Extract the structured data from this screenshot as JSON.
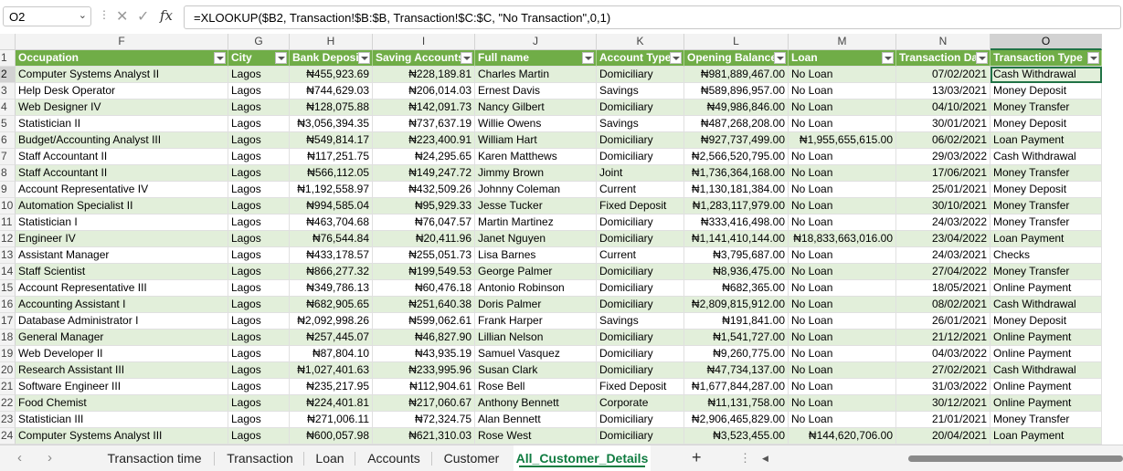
{
  "formula_bar": {
    "name_box": "O2",
    "formula": "=XLOOKUP($B2, Transaction!$B:$B, Transaction!$C:$C, \"No Transaction\",0,1)"
  },
  "columns": [
    {
      "letter": "F",
      "header": "Occupation"
    },
    {
      "letter": "G",
      "header": "City"
    },
    {
      "letter": "H",
      "header": "Bank Deposit"
    },
    {
      "letter": "I",
      "header": "Saving Accounts"
    },
    {
      "letter": "J",
      "header": "Full name"
    },
    {
      "letter": "K",
      "header": "Account Type"
    },
    {
      "letter": "L",
      "header": "Opening Balance"
    },
    {
      "letter": "M",
      "header": "Loan"
    },
    {
      "letter": "N",
      "header": "Transaction Date"
    },
    {
      "letter": "O",
      "header": "Transaction Type"
    }
  ],
  "header_row_number": "1",
  "rows": [
    {
      "num": "2",
      "cells": [
        "Computer Systems Analyst II",
        "Lagos",
        "₦455,923.69",
        "₦228,189.81",
        "Charles Martin",
        "Domiciliary",
        "₦981,889,467.00",
        "No Loan",
        "07/02/2021",
        "Cash Withdrawal"
      ]
    },
    {
      "num": "3",
      "cells": [
        "Help Desk Operator",
        "Lagos",
        "₦744,629.03",
        "₦206,014.03",
        "Ernest Davis",
        "Savings",
        "₦589,896,957.00",
        "No Loan",
        "13/03/2021",
        "Money Deposit"
      ]
    },
    {
      "num": "4",
      "cells": [
        "Web Designer IV",
        "Lagos",
        "₦128,075.88",
        "₦142,091.73",
        "Nancy Gilbert",
        "Domiciliary",
        "₦49,986,846.00",
        "No Loan",
        "04/10/2021",
        "Money Transfer"
      ]
    },
    {
      "num": "5",
      "cells": [
        "Statistician II",
        "Lagos",
        "₦3,056,394.35",
        "₦737,637.19",
        "Willie Owens",
        "Savings",
        "₦487,268,208.00",
        "No Loan",
        "30/01/2021",
        "Money Deposit"
      ]
    },
    {
      "num": "6",
      "cells": [
        "Budget/Accounting Analyst III",
        "Lagos",
        "₦549,814.17",
        "₦223,400.91",
        "William Hart",
        "Domiciliary",
        "₦927,737,499.00",
        "₦1,955,655,615.00",
        "06/02/2021",
        "Loan Payment"
      ]
    },
    {
      "num": "7",
      "cells": [
        "Staff Accountant II",
        "Lagos",
        "₦117,251.75",
        "₦24,295.65",
        "Karen Matthews",
        "Domiciliary",
        "₦2,566,520,795.00",
        "No Loan",
        "29/03/2022",
        "Cash Withdrawal"
      ]
    },
    {
      "num": "8",
      "cells": [
        "Staff Accountant II",
        "Lagos",
        "₦566,112.05",
        "₦149,247.72",
        "Jimmy Brown",
        "Joint",
        "₦1,736,364,168.00",
        "No Loan",
        "17/06/2021",
        "Money Transfer"
      ]
    },
    {
      "num": "9",
      "cells": [
        "Account Representative IV",
        "Lagos",
        "₦1,192,558.97",
        "₦432,509.26",
        "Johnny Coleman",
        "Current",
        "₦1,130,181,384.00",
        "No Loan",
        "25/01/2021",
        "Money Deposit"
      ]
    },
    {
      "num": "10",
      "cells": [
        "Automation Specialist II",
        "Lagos",
        "₦994,585.04",
        "₦95,929.33",
        "Jesse Tucker",
        "Fixed Deposit",
        "₦1,283,117,979.00",
        "No Loan",
        "30/10/2021",
        "Money Transfer"
      ]
    },
    {
      "num": "11",
      "cells": [
        "Statistician I",
        "Lagos",
        "₦463,704.68",
        "₦76,047.57",
        "Martin Martinez",
        "Domiciliary",
        "₦333,416,498.00",
        "No Loan",
        "24/03/2022",
        "Money Transfer"
      ]
    },
    {
      "num": "12",
      "cells": [
        "Engineer IV",
        "Lagos",
        "₦76,544.84",
        "₦20,411.96",
        "Janet Nguyen",
        "Domiciliary",
        "₦1,141,410,144.00",
        "₦18,833,663,016.00",
        "23/04/2022",
        "Loan Payment"
      ]
    },
    {
      "num": "13",
      "cells": [
        "Assistant Manager",
        "Lagos",
        "₦433,178.57",
        "₦255,051.73",
        "Lisa Barnes",
        "Current",
        "₦3,795,687.00",
        "No Loan",
        "24/03/2021",
        "Checks"
      ]
    },
    {
      "num": "14",
      "cells": [
        "Staff Scientist",
        "Lagos",
        "₦866,277.32",
        "₦199,549.53",
        "George Palmer",
        "Domiciliary",
        "₦8,936,475.00",
        "No Loan",
        "27/04/2022",
        "Money Transfer"
      ]
    },
    {
      "num": "15",
      "cells": [
        "Account Representative III",
        "Lagos",
        "₦349,786.13",
        "₦60,476.18",
        "Antonio Robinson",
        "Domiciliary",
        "₦682,365.00",
        "No Loan",
        "18/05/2021",
        "Online Payment"
      ]
    },
    {
      "num": "16",
      "cells": [
        "Accounting Assistant I",
        "Lagos",
        "₦682,905.65",
        "₦251,640.38",
        "Doris Palmer",
        "Domiciliary",
        "₦2,809,815,912.00",
        "No Loan",
        "08/02/2021",
        "Cash Withdrawal"
      ]
    },
    {
      "num": "17",
      "cells": [
        "Database Administrator I",
        "Lagos",
        "₦2,092,998.26",
        "₦599,062.61",
        "Frank Harper",
        "Savings",
        "₦191,841.00",
        "No Loan",
        "26/01/2021",
        "Money Deposit"
      ]
    },
    {
      "num": "18",
      "cells": [
        "General Manager",
        "Lagos",
        "₦257,445.07",
        "₦46,827.90",
        "Lillian Nelson",
        "Domiciliary",
        "₦1,541,727.00",
        "No Loan",
        "21/12/2021",
        "Online Payment"
      ]
    },
    {
      "num": "19",
      "cells": [
        "Web Developer II",
        "Lagos",
        "₦87,804.10",
        "₦43,935.19",
        "Samuel Vasquez",
        "Domiciliary",
        "₦9,260,775.00",
        "No Loan",
        "04/03/2022",
        "Online Payment"
      ]
    },
    {
      "num": "20",
      "cells": [
        "Research Assistant III",
        "Lagos",
        "₦1,027,401.63",
        "₦233,995.96",
        "Susan Clark",
        "Domiciliary",
        "₦47,734,137.00",
        "No Loan",
        "27/02/2021",
        "Cash Withdrawal"
      ]
    },
    {
      "num": "21",
      "cells": [
        "Software Engineer III",
        "Lagos",
        "₦235,217.95",
        "₦112,904.61",
        "Rose Bell",
        "Fixed Deposit",
        "₦1,677,844,287.00",
        "No Loan",
        "31/03/2022",
        "Online Payment"
      ]
    },
    {
      "num": "22",
      "cells": [
        "Food Chemist",
        "Lagos",
        "₦224,401.81",
        "₦217,060.67",
        "Anthony Bennett",
        "Corporate",
        "₦11,131,758.00",
        "No Loan",
        "30/12/2021",
        "Online Payment"
      ]
    },
    {
      "num": "23",
      "cells": [
        "Statistician III",
        "Lagos",
        "₦271,006.11",
        "₦72,324.75",
        "Alan Bennett",
        "Domiciliary",
        "₦2,906,465,829.00",
        "No Loan",
        "21/01/2021",
        "Money Transfer"
      ]
    },
    {
      "num": "24",
      "cells": [
        "Computer Systems Analyst III",
        "Lagos",
        "₦600,057.98",
        "₦621,310.03",
        "Rose West",
        "Domiciliary",
        "₦3,523,455.00",
        "₦144,620,706.00",
        "20/04/2021",
        "Loan Payment"
      ]
    }
  ],
  "sheet_tabs": [
    {
      "label": "Transaction time",
      "active": false
    },
    {
      "label": "Transaction",
      "active": false
    },
    {
      "label": "Loan",
      "active": false
    },
    {
      "label": "Accounts",
      "active": false
    },
    {
      "label": "Customer",
      "active": false
    },
    {
      "label": "All_Customer_Details",
      "active": true
    }
  ],
  "add_sheet_label": "+",
  "icons": {
    "name_box_dropdown": "chevron-down-icon",
    "cancel": "cancel-icon",
    "enter": "check-icon",
    "insert_function": "fx-icon",
    "prev_sheet": "chevron-left-icon",
    "next_sheet": "chevron-right-icon"
  },
  "colors": {
    "header_green": "#70ad47",
    "band_green": "#e2efda",
    "accent": "#217346"
  }
}
